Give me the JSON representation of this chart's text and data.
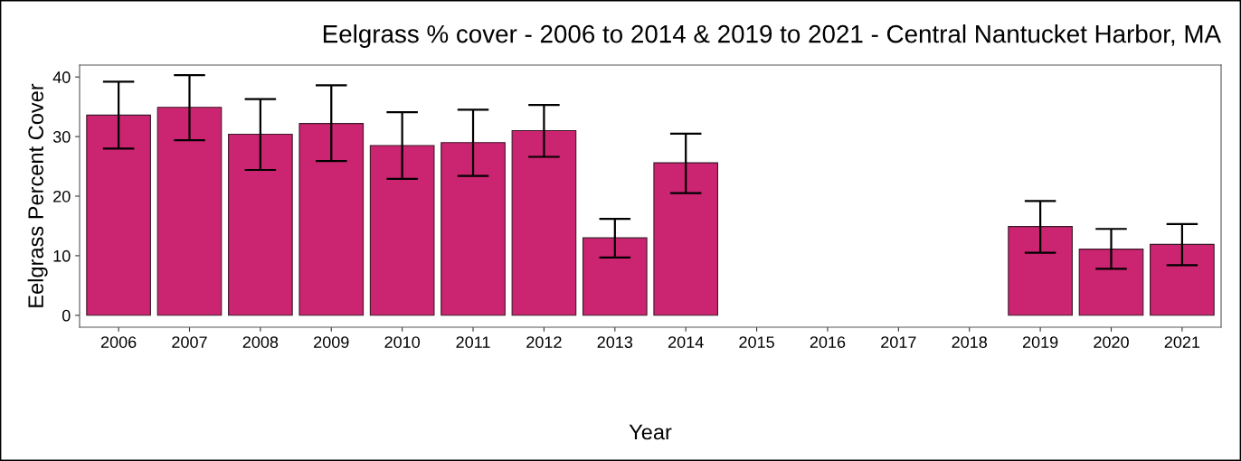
{
  "chart_data": {
    "type": "bar",
    "title": "Eelgrass % cover - 2006 to 2014 & 2019 to 2021 - Central Nantucket Harbor, MA",
    "xlabel": "Year",
    "ylabel": "Eelgrass Percent Cover",
    "categories": [
      "2006",
      "2007",
      "2008",
      "2009",
      "2010",
      "2011",
      "2012",
      "2013",
      "2014",
      "2015",
      "2016",
      "2017",
      "2018",
      "2019",
      "2020",
      "2021"
    ],
    "values": [
      33.6,
      34.9,
      30.4,
      32.2,
      28.5,
      29.0,
      31.0,
      13.0,
      25.6,
      null,
      null,
      null,
      null,
      14.9,
      11.1,
      11.9
    ],
    "errors": [
      [
        28.0,
        39.2
      ],
      [
        29.4,
        40.3
      ],
      [
        24.4,
        36.3
      ],
      [
        25.9,
        38.6
      ],
      [
        22.9,
        34.1
      ],
      [
        23.4,
        34.5
      ],
      [
        26.6,
        35.3
      ],
      [
        9.7,
        16.2
      ],
      [
        20.5,
        30.5
      ],
      null,
      null,
      null,
      null,
      [
        10.5,
        19.2
      ],
      [
        7.8,
        14.5
      ],
      [
        8.4,
        15.3
      ]
    ],
    "color": "#cb2470",
    "ylim": [
      -2,
      42
    ],
    "yticks": [
      0,
      10,
      20,
      30,
      40
    ],
    "grid": false,
    "legend": false
  }
}
